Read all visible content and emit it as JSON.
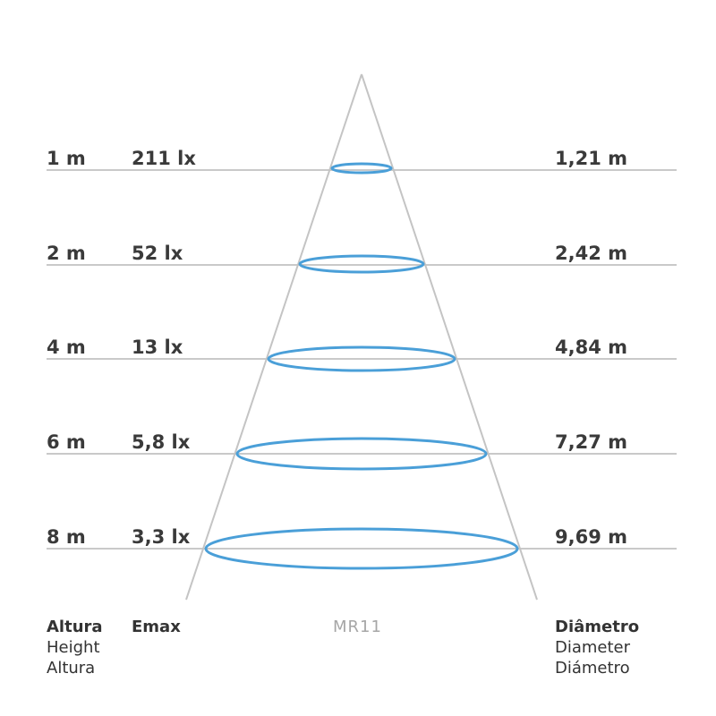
{
  "lamp_type": "MR11",
  "colors": {
    "beam_ring": "#4a9fd8",
    "cone_line": "#c4c4c4",
    "row_line": "#c9c9c9",
    "text": "#3a3a3a"
  },
  "rows": [
    {
      "height": "1 m",
      "emax": "211 lx",
      "diameter": "1,21 m"
    },
    {
      "height": "2 m",
      "emax": "52 lx",
      "diameter": "2,42 m"
    },
    {
      "height": "4 m",
      "emax": "13 lx",
      "diameter": "4,84 m"
    },
    {
      "height": "6 m",
      "emax": "5,8 lx",
      "diameter": "7,27 m"
    },
    {
      "height": "8 m",
      "emax": "3,3 lx",
      "diameter": "9,69 m"
    }
  ],
  "legend": {
    "height": {
      "pt": "Altura",
      "en": "Height",
      "es": "Altura"
    },
    "emax": "Emax",
    "diameter": {
      "pt": "Diâmetro",
      "en": "Diameter",
      "es": "Diámetro"
    }
  }
}
